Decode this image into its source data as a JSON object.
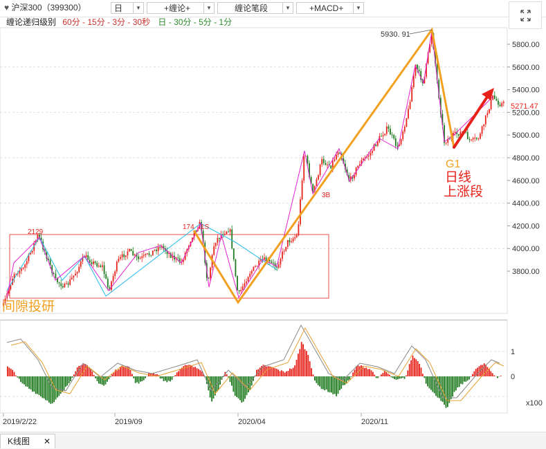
{
  "toolbar": {
    "stock_label": "沪深300（399300）",
    "period": "日",
    "chanlun_menu": "+缠论+",
    "chanlun_stroke": "缠论笔段",
    "macd_menu": "+MACD+"
  },
  "legend": {
    "prefix": "缠论递归级别",
    "minutes": "60分 - 15分 - 3分 - 30秒",
    "days": "日 - 30分 - 5分 - 1分"
  },
  "price_axis": {
    "ticks": [
      "5800.00",
      "5600.00",
      "5400.00",
      "5200.00",
      "5000.00",
      "4800.00",
      "4600.00",
      "4400.00",
      "4200.00",
      "4000.00",
      "3800.00"
    ],
    "current_price": "5271.47"
  },
  "macd_axis": {
    "ticks": [
      "1",
      "0"
    ],
    "multiplier": "x100"
  },
  "date_axis": [
    "2019/2/22",
    "2019/09",
    "2020/04",
    "2020/11"
  ],
  "annotations": {
    "peak_label": "5930. 91",
    "label_2129": "2129",
    "label_1748": "174",
    "label_1748b": "1S",
    "label_3b": "3B",
    "g1": "G1",
    "daily_rise_line1": "日线",
    "daily_rise_line2": "上涨段",
    "gap_note": "间隙投研"
  },
  "colors": {
    "up": "#e6221b",
    "down": "#1f7a1f",
    "orange": "#f2a020",
    "cyan": "#33c0e8",
    "magenta": "#e020d0",
    "red_arrow": "#e6221b"
  },
  "statusbar": {
    "tab_label": "K线图",
    "tab_close": "✕"
  }
}
